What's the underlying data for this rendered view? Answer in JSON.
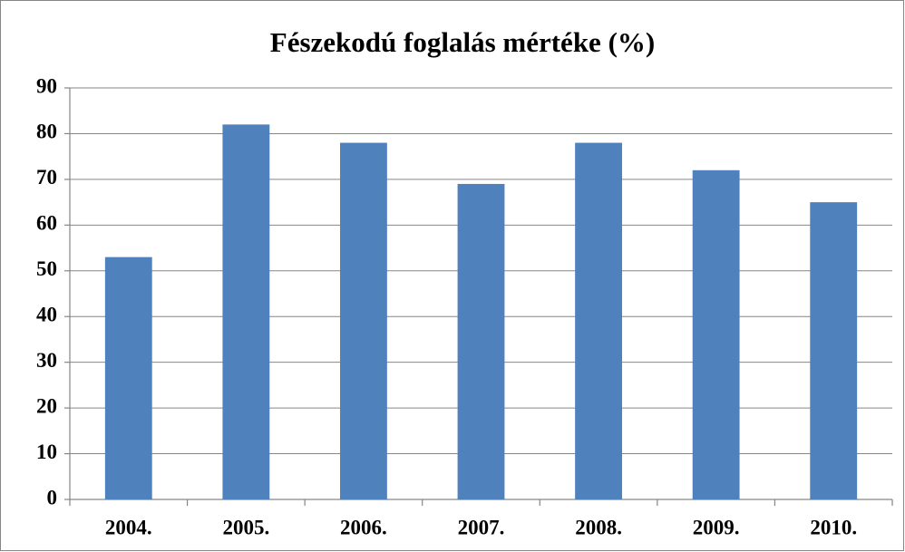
{
  "chart_data": {
    "type": "bar",
    "title": "Fészekodú foglalás mértéke (%)",
    "categories": [
      "2004.",
      "2005.",
      "2006.",
      "2007.",
      "2008.",
      "2009.",
      "2010."
    ],
    "values": [
      53,
      82,
      78,
      69,
      78,
      72,
      65
    ],
    "color": "#4f81bd",
    "ylim": [
      0,
      90
    ],
    "yticks": [
      0,
      10,
      20,
      30,
      40,
      50,
      60,
      70,
      80,
      90
    ],
    "grid": true
  }
}
